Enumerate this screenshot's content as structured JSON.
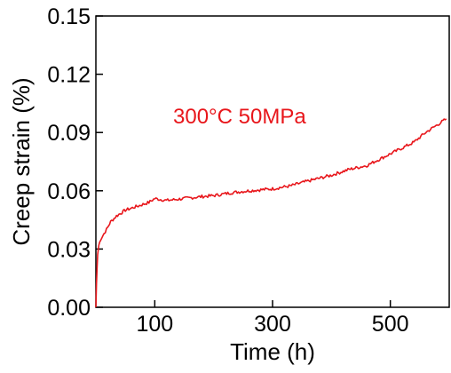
{
  "chart_data": {
    "type": "line",
    "xlabel": "Time (h)",
    "ylabel": "Creep strain (%)",
    "xlim": [
      0,
      600
    ],
    "ylim": [
      0,
      0.15
    ],
    "x_ticks": [
      100,
      300,
      500
    ],
    "y_ticks": [
      0,
      0.03,
      0.06,
      0.09,
      0.12,
      0.15
    ],
    "x_tick_labels": [
      "100",
      "300",
      "500"
    ],
    "y_tick_labels": [
      "0.00",
      "0.03",
      "0.06",
      "0.09",
      "0.12",
      "0.15"
    ],
    "annotation": "300°C 50MPa",
    "grid": false,
    "colors": {
      "series": "#e8161b",
      "axis": "#000000"
    },
    "series": [
      {
        "x": [
          0,
          1,
          2,
          3,
          5,
          8,
          12,
          18,
          25,
          35,
          50,
          70,
          90,
          100,
          120,
          150,
          180,
          200,
          230,
          260,
          300,
          330,
          360,
          400,
          430,
          460,
          480,
          500,
          520,
          540,
          560,
          580,
          595
        ],
        "y": [
          0.0,
          0.012,
          0.02,
          0.027,
          0.032,
          0.035,
          0.037,
          0.04,
          0.044,
          0.047,
          0.05,
          0.052,
          0.054,
          0.056,
          0.055,
          0.056,
          0.057,
          0.0575,
          0.059,
          0.06,
          0.061,
          0.0625,
          0.065,
          0.068,
          0.071,
          0.073,
          0.076,
          0.079,
          0.082,
          0.085,
          0.09,
          0.094,
          0.097
        ]
      }
    ]
  }
}
